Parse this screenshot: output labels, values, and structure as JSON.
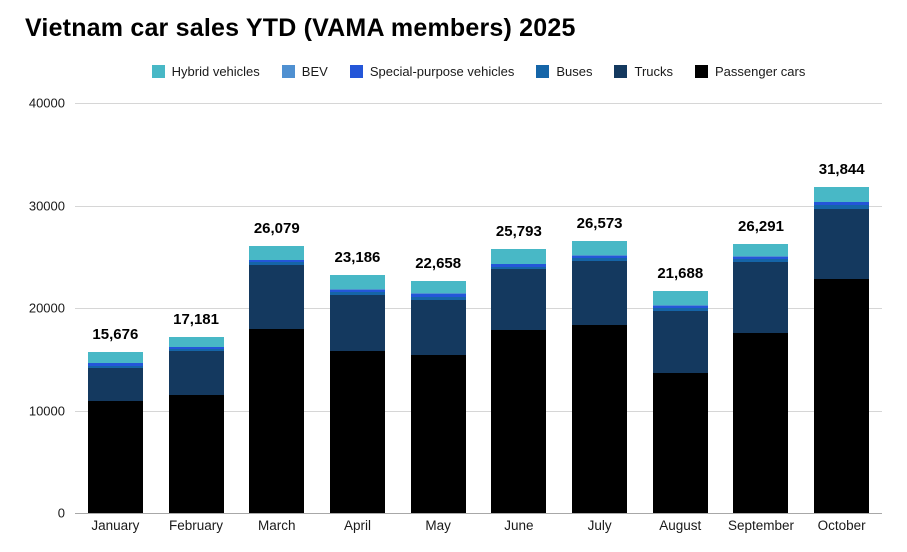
{
  "title": "Vietnam car sales YTD (VAMA members) 2025",
  "chart_data": {
    "type": "bar",
    "stacked": true,
    "title": "Vietnam car sales YTD (VAMA members) 2025",
    "xlabel": "",
    "ylabel": "",
    "grid": true,
    "legend_position": "top",
    "ylim": [
      0,
      40000
    ],
    "y_ticks": [
      0,
      10000,
      20000,
      30000,
      40000
    ],
    "y_tick_labels": [
      "0",
      "10000",
      "20000",
      "30000",
      "40000"
    ],
    "categories": [
      "January",
      "February",
      "March",
      "April",
      "May",
      "June",
      "July",
      "August",
      "September",
      "October"
    ],
    "totals": [
      15676,
      17181,
      26079,
      23186,
      22658,
      25793,
      26573,
      21688,
      26291,
      31844
    ],
    "total_labels": [
      "15,676",
      "17,181",
      "26,079",
      "23,186",
      "22,658",
      "25,793",
      "26,573",
      "21,688",
      "26,291",
      "31,844"
    ],
    "series": [
      {
        "name": "Passenger cars",
        "color": "#000000",
        "values": [
          10900,
          11500,
          18000,
          15800,
          15400,
          17900,
          18300,
          13700,
          17600,
          22800
        ]
      },
      {
        "name": "Trucks",
        "color": "#14395f",
        "values": [
          3200,
          4300,
          6200,
          5500,
          5400,
          5900,
          6300,
          6000,
          6900,
          6900
        ]
      },
      {
        "name": "Buses",
        "color": "#1565a8",
        "values": [
          250,
          200,
          250,
          250,
          300,
          250,
          250,
          300,
          250,
          350
        ]
      },
      {
        "name": "Special-purpose vehicles",
        "color": "#2456d8",
        "values": [
          250,
          150,
          200,
          250,
          250,
          200,
          250,
          200,
          250,
          250
        ]
      },
      {
        "name": "BEV",
        "color": "#4f90d1",
        "values": [
          76,
          31,
          29,
          86,
          108,
          43,
          73,
          88,
          91,
          94
        ]
      },
      {
        "name": "Hybrid vehicles",
        "color": "#48b8c6",
        "values": [
          1000,
          1000,
          1400,
          1300,
          1200,
          1500,
          1400,
          1400,
          1200,
          1450
        ]
      }
    ],
    "legend_order": [
      "Hybrid vehicles",
      "BEV",
      "Special-purpose vehicles",
      "Buses",
      "Trucks",
      "Passenger cars"
    ]
  }
}
